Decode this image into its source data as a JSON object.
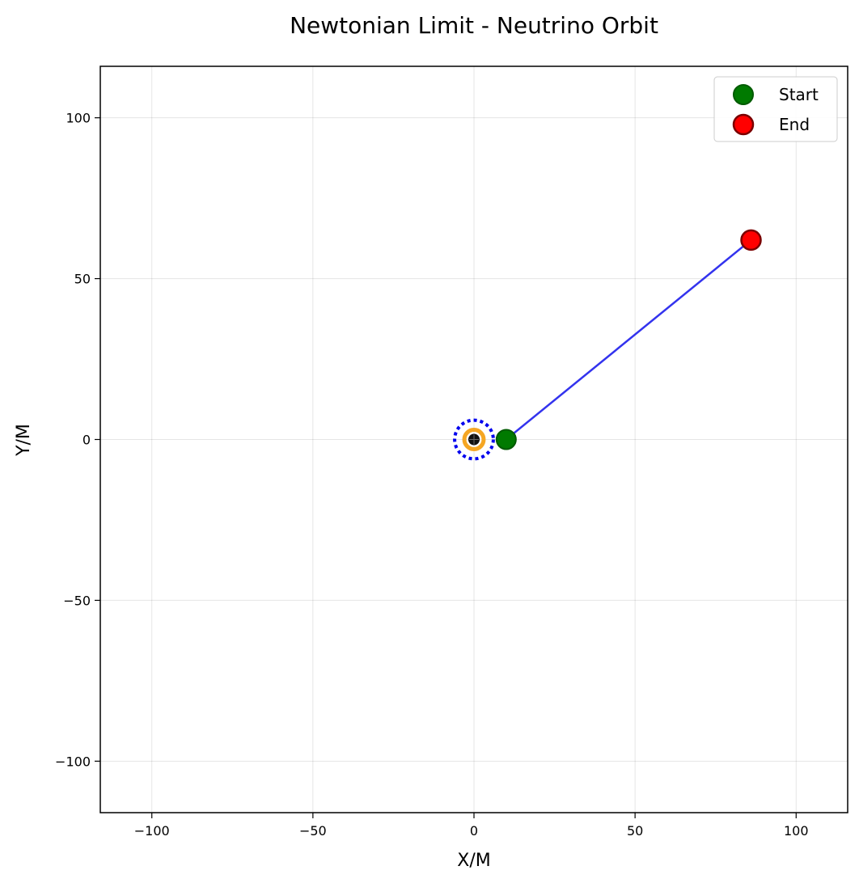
{
  "chart_data": {
    "type": "line",
    "title": "Newtonian Limit - Neutrino Orbit",
    "xlabel": "X/M",
    "ylabel": "Y/M",
    "xlim": [
      -116,
      116
    ],
    "ylim": [
      -116,
      116
    ],
    "grid": true,
    "x_ticks": [
      -100,
      -50,
      0,
      50,
      100
    ],
    "y_ticks": [
      -100,
      -50,
      0,
      50,
      100
    ],
    "x_tick_labels": [
      "−100",
      "−50",
      "0",
      "50",
      "100"
    ],
    "y_tick_labels": [
      "−100",
      "−50",
      "0",
      "50",
      "100"
    ],
    "series": [
      {
        "name": "trajectory",
        "x": [
          10,
          86
        ],
        "y": [
          0,
          62
        ],
        "color": "#3333ee"
      }
    ],
    "markers": {
      "start": {
        "label": "Start",
        "x": 10,
        "y": 0,
        "color": "#007a00",
        "edge": "#005a00"
      },
      "end": {
        "label": "End",
        "x": 86,
        "y": 62,
        "color": "#ff0000",
        "edge": "#7a0000"
      }
    },
    "central_object": {
      "x": 0,
      "y": 0,
      "dotted_ring_radius": 6,
      "orange_ring_radius": 3,
      "core_color": "#111111",
      "orange_color": "#f5a623",
      "ring_color": "#0000ee"
    },
    "legend": {
      "position": "top-right",
      "entries": [
        "Start",
        "End"
      ]
    }
  }
}
